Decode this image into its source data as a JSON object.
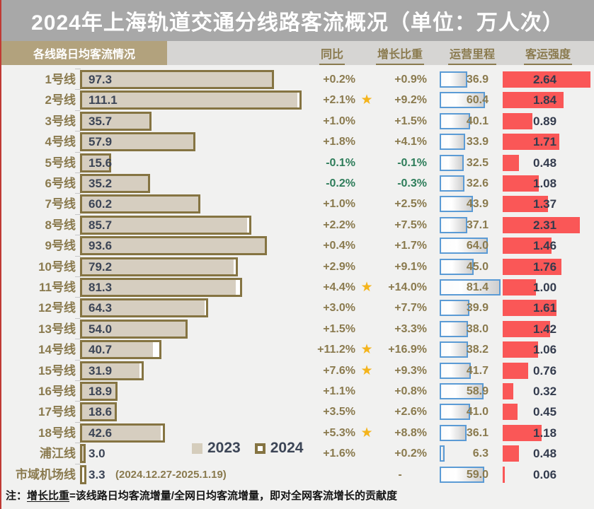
{
  "title": "2024年上海轨道交通分线路客流概况（单位：万人次）",
  "section_label": "各线路日均客流情况",
  "columns": {
    "yoy": "同比",
    "share": "增长比重",
    "mileage": "运营里程",
    "intensity": "客运强度"
  },
  "legend": {
    "y2023": "2023",
    "y2024": "2024"
  },
  "footnote": {
    "prefix": "注：",
    "term": "增长比重",
    "rest": "=该线路日均客流增量/全网日均客流增量，即对全网客流增长的贡献度"
  },
  "colors": {
    "title_bg": "#a8a8a8",
    "section_bg": "#b2a27d",
    "gold_text": "#8a7a4e",
    "bar_fill_2023": "#d6cec0",
    "bar_border_2024": "#857442",
    "negative_green": "#2e7d5a",
    "mileage_border_blue": "#5b9bd5",
    "intensity_red": "#fa5757",
    "value_text": "#3c4556",
    "star_gold": "#f4b41c"
  },
  "chart_data": {
    "type": "bar",
    "orientation": "horizontal",
    "title": "2024年上海轨道交通分线路客流概况",
    "unit": "万人次",
    "series_legend": [
      "2023",
      "2024"
    ],
    "categories": [
      "1号线",
      "2号线",
      "3号线",
      "4号线",
      "5号线",
      "6号线",
      "7号线",
      "8号线",
      "9号线",
      "10号线",
      "11号线",
      "12号线",
      "13号线",
      "14号线",
      "15号线",
      "16号线",
      "17号线",
      "18号线",
      "浦江线",
      "市域机场线"
    ],
    "rows": [
      {
        "line": "1号线",
        "avg_flow": "97.3",
        "yoy": "+0.2%",
        "share": "+0.9%",
        "star": false,
        "mileage": "36.9",
        "intensity": "2.64"
      },
      {
        "line": "2号线",
        "avg_flow": "111.1",
        "yoy": "+2.1%",
        "share": "+9.2%",
        "star": true,
        "mileage": "60.4",
        "intensity": "1.84"
      },
      {
        "line": "3号线",
        "avg_flow": "35.7",
        "yoy": "+1.0%",
        "share": "+1.5%",
        "star": false,
        "mileage": "40.1",
        "intensity": "0.89"
      },
      {
        "line": "4号线",
        "avg_flow": "57.9",
        "yoy": "+1.8%",
        "share": "+4.1%",
        "star": false,
        "mileage": "33.9",
        "intensity": "1.71"
      },
      {
        "line": "5号线",
        "avg_flow": "15.6",
        "yoy": "-0.1%",
        "share": "-0.1%",
        "star": false,
        "mileage": "32.5",
        "intensity": "0.48"
      },
      {
        "line": "6号线",
        "avg_flow": "35.2",
        "yoy": "-0.2%",
        "share": "-0.3%",
        "star": false,
        "mileage": "32.6",
        "intensity": "1.08"
      },
      {
        "line": "7号线",
        "avg_flow": "60.2",
        "yoy": "+1.0%",
        "share": "+2.5%",
        "star": false,
        "mileage": "43.9",
        "intensity": "1.37"
      },
      {
        "line": "8号线",
        "avg_flow": "85.7",
        "yoy": "+2.2%",
        "share": "+7.5%",
        "star": false,
        "mileage": "37.1",
        "intensity": "2.31"
      },
      {
        "line": "9号线",
        "avg_flow": "93.6",
        "yoy": "+0.4%",
        "share": "+1.7%",
        "star": false,
        "mileage": "64.0",
        "intensity": "1.46"
      },
      {
        "line": "10号线",
        "avg_flow": "79.2",
        "yoy": "+2.9%",
        "share": "+9.1%",
        "star": false,
        "mileage": "45.0",
        "intensity": "1.76"
      },
      {
        "line": "11号线",
        "avg_flow": "81.3",
        "yoy": "+4.4%",
        "share": "+14.0%",
        "star": true,
        "mileage": "81.4",
        "intensity": "1.00"
      },
      {
        "line": "12号线",
        "avg_flow": "64.3",
        "yoy": "+3.0%",
        "share": "+7.7%",
        "star": false,
        "mileage": "39.9",
        "intensity": "1.61"
      },
      {
        "line": "13号线",
        "avg_flow": "54.0",
        "yoy": "+1.5%",
        "share": "+3.3%",
        "star": false,
        "mileage": "38.0",
        "intensity": "1.42"
      },
      {
        "line": "14号线",
        "avg_flow": "40.7",
        "yoy": "+11.2%",
        "share": "+16.9%",
        "star": true,
        "mileage": "38.2",
        "intensity": "1.06"
      },
      {
        "line": "15号线",
        "avg_flow": "31.9",
        "yoy": "+7.6%",
        "share": "+9.3%",
        "star": true,
        "mileage": "41.7",
        "intensity": "0.76"
      },
      {
        "line": "16号线",
        "avg_flow": "18.9",
        "yoy": "+1.1%",
        "share": "+0.8%",
        "star": false,
        "mileage": "58.9",
        "intensity": "0.32"
      },
      {
        "line": "17号线",
        "avg_flow": "18.6",
        "yoy": "+3.5%",
        "share": "+2.6%",
        "star": false,
        "mileage": "41.0",
        "intensity": "0.45"
      },
      {
        "line": "18号线",
        "avg_flow": "42.6",
        "yoy": "+5.3%",
        "share": "+8.8%",
        "star": true,
        "mileage": "36.1",
        "intensity": "1.18"
      },
      {
        "line": "浦江线",
        "avg_flow": "3.0",
        "yoy": "+1.6%",
        "share": "+0.2%",
        "star": false,
        "mileage": "6.3",
        "intensity": "0.48"
      },
      {
        "line": "市域机场线",
        "avg_flow": "3.3",
        "yoy": "",
        "share": "-",
        "star": false,
        "mileage": "59.0",
        "intensity": "0.06",
        "note": "(2024.12.27-2025.1.19)",
        "no_2023": true
      }
    ],
    "layout": {
      "flow_axis_max": 115,
      "mileage_axis_max": 110,
      "intensity_axis_max": 2.75,
      "legend_position": "inside-bottom"
    }
  }
}
